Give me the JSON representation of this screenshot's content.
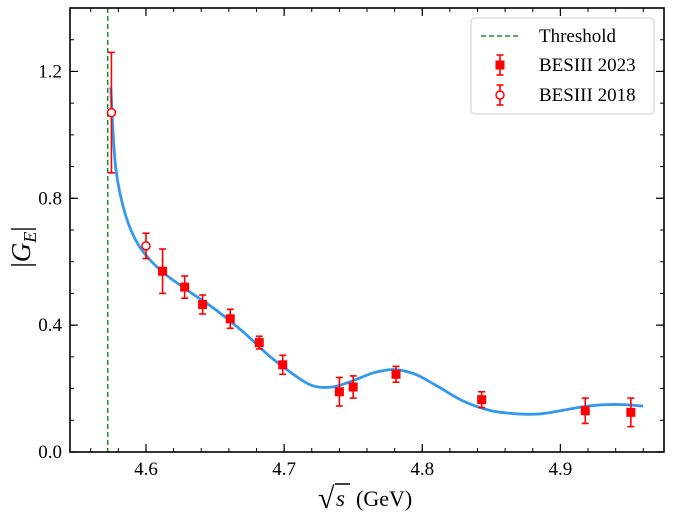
{
  "chart_data": {
    "type": "scatter",
    "xlabel": "√s (GeV)",
    "xlabel_parts": {
      "radical": "√",
      "var": "s",
      "unit": "(GeV)"
    },
    "ylabel": "|G_E|",
    "ylabel_parts": {
      "bar": "|",
      "var": "G",
      "sub": "E"
    },
    "xlim": [
      4.545,
      4.975
    ],
    "ylim": [
      0.0,
      1.4
    ],
    "xticks": [
      4.6,
      4.7,
      4.8,
      4.9
    ],
    "xtick_labels": [
      "4.6",
      "4.7",
      "4.8",
      "4.9"
    ],
    "yticks": [
      0.0,
      0.4,
      0.8,
      1.2
    ],
    "ytick_labels": [
      "0.0",
      "0.4",
      "0.8",
      "1.2"
    ],
    "legend_position": "top-right",
    "threshold": {
      "name": "Threshold",
      "x": 4.5723,
      "color": "#228B22"
    },
    "series": [
      {
        "name": "BESIII 2023",
        "marker": "square-filled",
        "color": "#ff0000",
        "x": [
          4.612,
          4.628,
          4.641,
          4.661,
          4.682,
          4.699,
          4.74,
          4.75,
          4.781,
          4.843,
          4.918,
          4.951
        ],
        "y": [
          0.57,
          0.52,
          0.465,
          0.42,
          0.345,
          0.275,
          0.19,
          0.205,
          0.245,
          0.165,
          0.13,
          0.125
        ],
        "yerr": [
          0.07,
          0.035,
          0.03,
          0.03,
          0.02,
          0.03,
          0.045,
          0.035,
          0.025,
          0.025,
          0.04,
          0.045
        ]
      },
      {
        "name": "BESIII 2018",
        "marker": "circle-open",
        "color": "#ff0000",
        "x": [
          4.575,
          4.6
        ],
        "y": [
          1.07,
          0.65
        ],
        "yerr": [
          0.19,
          0.04
        ]
      }
    ],
    "fit_curve": {
      "name": "fit",
      "color": "#3399ee",
      "x": [
        4.5745,
        4.578,
        4.585,
        4.595,
        4.61,
        4.63,
        4.65,
        4.67,
        4.69,
        4.705,
        4.72,
        4.735,
        4.75,
        4.765,
        4.78,
        4.795,
        4.81,
        4.83,
        4.85,
        4.87,
        4.885,
        4.9,
        4.92,
        4.94,
        4.96
      ],
      "y": [
        1.15,
        0.9,
        0.75,
        0.65,
        0.575,
        0.51,
        0.45,
        0.38,
        0.3,
        0.25,
        0.21,
        0.205,
        0.225,
        0.25,
        0.26,
        0.245,
        0.21,
        0.16,
        0.13,
        0.12,
        0.12,
        0.13,
        0.145,
        0.15,
        0.145
      ]
    }
  }
}
